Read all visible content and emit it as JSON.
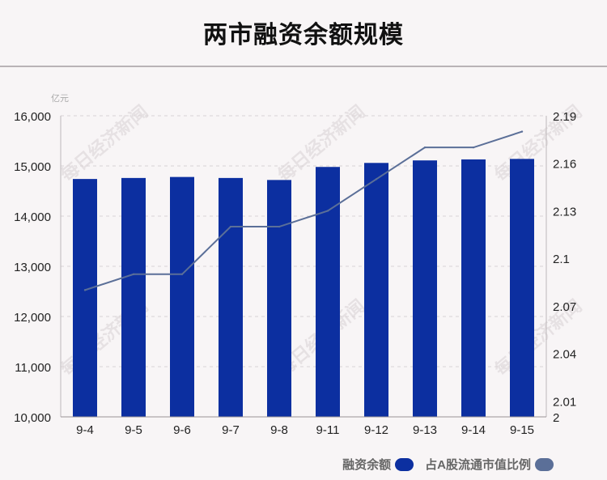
{
  "title": "两市融资余额规模",
  "watermark": "每日经济新闻",
  "chart_data": {
    "type": "bar+line",
    "title": "两市融资余额规模",
    "categories": [
      "9-4",
      "9-5",
      "9-6",
      "9-7",
      "9-8",
      "9-11",
      "9-12",
      "9-13",
      "9-14",
      "9-15"
    ],
    "ylabel": "亿元",
    "y_left": {
      "ylim": [
        10000,
        16000
      ],
      "ticks": [
        10000,
        11000,
        12000,
        13000,
        14000,
        15000,
        16000
      ],
      "tick_labels": [
        "10,000",
        "11,000",
        "12,000",
        "13,000",
        "14,000",
        "15,000",
        "16,000"
      ]
    },
    "y_right": {
      "ylim": [
        2.0,
        2.19
      ],
      "ticks": [
        2.0,
        2.01,
        2.04,
        2.07,
        2.1,
        2.13,
        2.16,
        2.19
      ],
      "tick_labels": [
        "2",
        "2.01",
        "2.04",
        "2.07",
        "2.1",
        "2.13",
        "2.16",
        "2.19"
      ]
    },
    "series": [
      {
        "name": "融资余额",
        "type": "bar",
        "axis": "left",
        "color": "#0c2fa0",
        "values": [
          14740,
          14760,
          14780,
          14760,
          14720,
          14980,
          15060,
          15110,
          15130,
          15140
        ]
      },
      {
        "name": "占A股流通市值比例",
        "type": "line",
        "axis": "right",
        "color": "#5b6f98",
        "values": [
          2.08,
          2.09,
          2.09,
          2.12,
          2.12,
          2.13,
          2.15,
          2.17,
          2.17,
          2.18
        ]
      }
    ],
    "grid": "horizontal-dashed",
    "legend": "bottom-right"
  }
}
